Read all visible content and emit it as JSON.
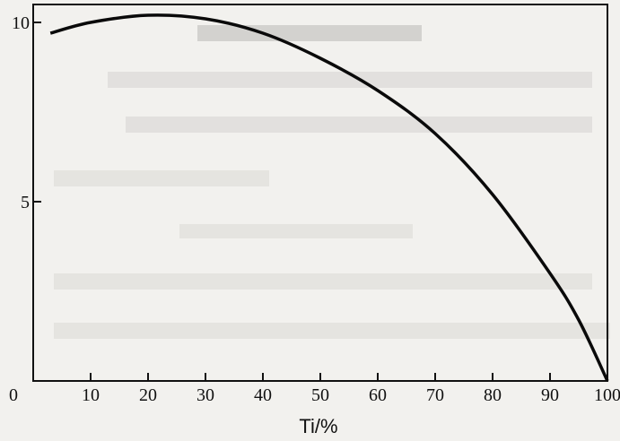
{
  "chart_data": {
    "type": "line",
    "title": "",
    "xlabel": "Ti/%",
    "ylabel": "",
    "xlim": [
      0,
      100
    ],
    "ylim": [
      0,
      10.5
    ],
    "x_ticks": [
      "10",
      "20",
      "30",
      "40",
      "50",
      "60",
      "70",
      "80",
      "90",
      "100"
    ],
    "y_ticks": [
      "0",
      "5",
      "10"
    ],
    "grid": false,
    "legend": "none",
    "series": [
      {
        "x": [
          3,
          10,
          20,
          30,
          40,
          50,
          60,
          70,
          80,
          90,
          95,
          100
        ],
        "y": [
          9.7,
          10.0,
          10.2,
          10.1,
          9.7,
          9.0,
          8.1,
          6.9,
          5.2,
          3.0,
          1.7,
          0.0
        ]
      }
    ]
  },
  "colors": {
    "line": "#0a0a0a",
    "axis": "#111111",
    "background": "#f2f1ee"
  }
}
